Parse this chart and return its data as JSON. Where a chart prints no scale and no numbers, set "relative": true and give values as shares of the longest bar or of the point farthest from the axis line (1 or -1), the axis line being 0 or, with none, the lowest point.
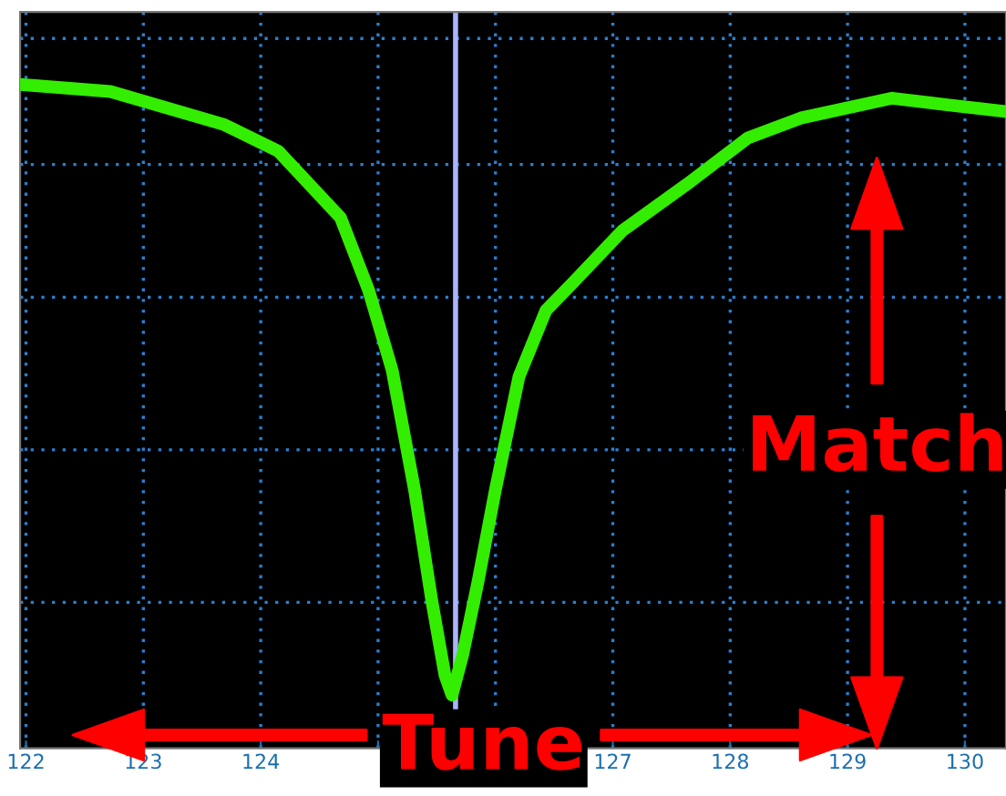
{
  "chart_data": {
    "type": "line",
    "relative": true,
    "x": [
      122.0,
      122.72,
      123.69,
      124.15,
      124.68,
      124.92,
      125.12,
      125.31,
      125.46,
      125.57,
      125.63,
      125.72,
      125.85,
      126.0,
      126.2,
      126.43,
      126.65,
      127.08,
      127.63,
      128.15,
      128.6,
      129.38,
      129.85,
      130.34
    ],
    "series": [
      {
        "color": "#33ee00",
        "values": [
          1.0,
          0.99,
          0.94,
          0.9,
          0.8,
          0.69,
          0.57,
          0.39,
          0.22,
          0.11,
          0.08,
          0.14,
          0.25,
          0.39,
          0.56,
          0.66,
          0.7,
          0.78,
          0.85,
          0.92,
          0.95,
          0.98,
          0.97,
          0.96
        ]
      }
    ],
    "xlim": [
      121.95,
      130.35
    ],
    "xticks": [
      122,
      123,
      124,
      {
        "value": 125,
        "label": null
      },
      {
        "value": 126,
        "label": null
      },
      127,
      128,
      129,
      130
    ],
    "ref_lines": [
      {
        "axis": "x",
        "value": 125.66,
        "color": "#aab4ff"
      }
    ],
    "grid": true,
    "annotations": [
      "Match",
      "Tune"
    ]
  }
}
